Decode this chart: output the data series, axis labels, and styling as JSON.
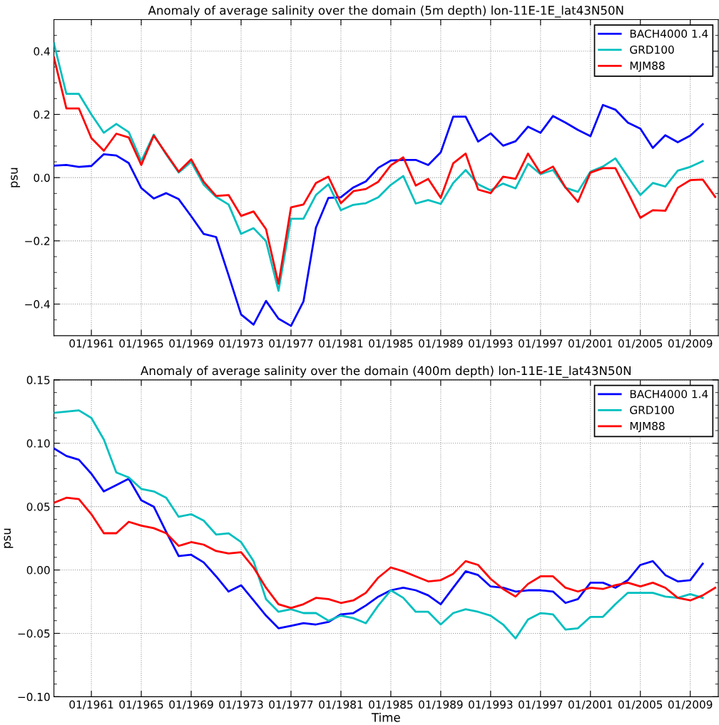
{
  "chart_data": [
    {
      "type": "line",
      "title": "Anomaly of average salinity over the domain (5m depth) lon-11E-1E_lat43N50N",
      "ylabel": "psu",
      "x": [
        "1958-01",
        "1959-01",
        "1960-01",
        "1961-01",
        "1962-01",
        "1963-01",
        "1964-01",
        "1965-01",
        "1966-01",
        "1967-01",
        "1968-01",
        "1969-01",
        "1970-01",
        "1971-01",
        "1972-01",
        "1973-01",
        "1974-01",
        "1975-01",
        "1976-01",
        "1977-01",
        "1978-01",
        "1979-01",
        "1980-01",
        "1981-01",
        "1982-01",
        "1983-01",
        "1984-01",
        "1985-01",
        "1986-01",
        "1987-01",
        "1988-01",
        "1989-01",
        "1990-01",
        "1991-01",
        "1992-01",
        "1993-01",
        "1994-01",
        "1995-01",
        "1996-01",
        "1997-01",
        "1998-01",
        "1999-01",
        "2000-01",
        "2001-01",
        "2002-01",
        "2003-01",
        "2004-01",
        "2005-01",
        "2006-01",
        "2007-01",
        "2008-01",
        "2009-01",
        "2010-01",
        "2011-01"
      ],
      "series": [
        {
          "name": "BACH4000 1.4",
          "color": "#0000ff",
          "values": [
            0.038,
            0.04,
            0.034,
            0.037,
            0.074,
            0.07,
            0.046,
            -0.033,
            -0.066,
            -0.049,
            -0.068,
            -0.122,
            -0.178,
            -0.188,
            -0.309,
            -0.433,
            -0.465,
            -0.39,
            -0.446,
            -0.469,
            -0.392,
            -0.158,
            -0.064,
            -0.062,
            -0.031,
            -0.012,
            0.031,
            0.054,
            0.056,
            0.056,
            0.04,
            0.08,
            0.193,
            0.193,
            0.114,
            0.14,
            0.101,
            0.115,
            0.161,
            0.142,
            0.195,
            0.174,
            0.151,
            0.131,
            0.23,
            0.215,
            0.174,
            0.155,
            0.094,
            0.134,
            0.112,
            0.133,
            0.169,
            null
          ]
        },
        {
          "name": "GRD100",
          "color": "#00bfbf",
          "values": [
            0.425,
            0.265,
            0.265,
            0.2,
            0.142,
            0.17,
            0.144,
            0.052,
            0.136,
            0.073,
            0.016,
            0.05,
            -0.022,
            -0.061,
            -0.085,
            -0.178,
            -0.16,
            -0.201,
            -0.358,
            -0.13,
            -0.13,
            -0.055,
            -0.021,
            -0.103,
            -0.086,
            -0.081,
            -0.062,
            -0.023,
            0.005,
            -0.082,
            -0.071,
            -0.083,
            -0.017,
            0.024,
            -0.021,
            -0.04,
            -0.019,
            -0.034,
            0.044,
            0.011,
            0.024,
            -0.032,
            -0.045,
            0.019,
            0.035,
            0.061,
            0.003,
            -0.055,
            -0.017,
            -0.028,
            0.022,
            0.034,
            0.052,
            null
          ]
        },
        {
          "name": "MJM88",
          "color": "#ff0000",
          "values": [
            0.38,
            0.219,
            0.219,
            0.125,
            0.085,
            0.139,
            0.127,
            0.04,
            0.133,
            0.076,
            0.019,
            0.058,
            -0.013,
            -0.058,
            -0.055,
            -0.121,
            -0.107,
            -0.163,
            -0.336,
            -0.094,
            -0.085,
            -0.017,
            0.003,
            -0.081,
            -0.043,
            -0.036,
            -0.013,
            0.039,
            0.064,
            -0.025,
            -0.004,
            -0.064,
            0.045,
            0.076,
            -0.038,
            -0.049,
            0.003,
            -0.004,
            0.076,
            0.014,
            0.035,
            -0.031,
            -0.077,
            0.016,
            0.03,
            0.03,
            -0.047,
            -0.127,
            -0.103,
            -0.105,
            -0.032,
            -0.008,
            -0.006,
            -0.061
          ]
        }
      ],
      "xlim": [
        "1958-01",
        "2011-04"
      ],
      "xticks": [
        {
          "value": "1961-01",
          "label": "01/1961"
        },
        {
          "value": "1965-01",
          "label": "01/1965"
        },
        {
          "value": "1969-01",
          "label": "01/1969"
        },
        {
          "value": "1973-01",
          "label": "01/1973"
        },
        {
          "value": "1977-01",
          "label": "01/1977"
        },
        {
          "value": "1981-01",
          "label": "01/1981"
        },
        {
          "value": "1985-01",
          "label": "01/1985"
        },
        {
          "value": "1989-01",
          "label": "01/1989"
        },
        {
          "value": "1993-01",
          "label": "01/1993"
        },
        {
          "value": "1997-01",
          "label": "01/1997"
        },
        {
          "value": "2001-01",
          "label": "01/2001"
        },
        {
          "value": "2005-01",
          "label": "01/2005"
        },
        {
          "value": "2009-01",
          "label": "01/2009"
        }
      ],
      "ylim": [
        -0.5,
        0.5
      ],
      "yticks": [
        {
          "value": -0.45,
          "label": null
        },
        {
          "value": -0.4,
          "label": "−0.4"
        },
        {
          "value": -0.35,
          "label": null
        },
        {
          "value": -0.3,
          "label": null
        },
        {
          "value": -0.25,
          "label": null
        },
        {
          "value": -0.2,
          "label": "−0.2"
        },
        {
          "value": -0.15,
          "label": null
        },
        {
          "value": -0.1,
          "label": null
        },
        {
          "value": -0.05,
          "label": null
        },
        {
          "value": 0.0,
          "label": "0.0"
        },
        {
          "value": 0.05,
          "label": null
        },
        {
          "value": 0.1,
          "label": null
        },
        {
          "value": 0.15,
          "label": null
        },
        {
          "value": 0.2,
          "label": "0.2"
        },
        {
          "value": 0.25,
          "label": null
        },
        {
          "value": 0.3,
          "label": null
        },
        {
          "value": 0.35,
          "label": null
        },
        {
          "value": 0.4,
          "label": "0.4"
        },
        {
          "value": 0.45,
          "label": null
        }
      ],
      "grid": true,
      "legend": "top right",
      "line_style": "solid",
      "marker": "none"
    },
    {
      "type": "line",
      "title": "Anomaly of average salinity over the domain (400m depth) lon-11E-1E_lat43N50N",
      "xlabel": "Time",
      "ylabel": "psu",
      "x": [
        "1958-01",
        "1959-01",
        "1960-01",
        "1961-01",
        "1962-01",
        "1963-01",
        "1964-01",
        "1965-01",
        "1966-01",
        "1967-01",
        "1968-01",
        "1969-01",
        "1970-01",
        "1971-01",
        "1972-01",
        "1973-01",
        "1974-01",
        "1975-01",
        "1976-01",
        "1977-01",
        "1978-01",
        "1979-01",
        "1980-01",
        "1981-01",
        "1982-01",
        "1983-01",
        "1984-01",
        "1985-01",
        "1986-01",
        "1987-01",
        "1988-01",
        "1989-01",
        "1990-01",
        "1991-01",
        "1992-01",
        "1993-01",
        "1994-01",
        "1995-01",
        "1996-01",
        "1997-01",
        "1998-01",
        "1999-01",
        "2000-01",
        "2001-01",
        "2002-01",
        "2003-01",
        "2004-01",
        "2005-01",
        "2006-01",
        "2007-01",
        "2008-01",
        "2009-01",
        "2010-01",
        "2011-01"
      ],
      "series": [
        {
          "name": "BACH4000 1.4",
          "color": "#0000ff",
          "values": [
            0.096,
            0.09,
            0.087,
            0.076,
            0.062,
            0.067,
            0.072,
            0.055,
            0.05,
            0.03,
            0.011,
            0.012,
            0.006,
            -0.005,
            -0.017,
            -0.012,
            -0.024,
            -0.036,
            -0.046,
            -0.044,
            -0.042,
            -0.043,
            -0.041,
            -0.035,
            -0.034,
            -0.028,
            -0.021,
            -0.016,
            -0.014,
            -0.016,
            -0.02,
            -0.027,
            -0.014,
            -0.001,
            -0.004,
            -0.013,
            -0.014,
            -0.017,
            -0.016,
            -0.016,
            -0.017,
            -0.026,
            -0.023,
            -0.01,
            -0.01,
            -0.014,
            -0.008,
            0.004,
            0.007,
            -0.004,
            -0.009,
            -0.008,
            0.005,
            null
          ]
        },
        {
          "name": "GRD100",
          "color": "#00bfbf",
          "values": [
            0.124,
            0.125,
            0.126,
            0.12,
            0.103,
            0.077,
            0.073,
            0.064,
            0.062,
            0.057,
            0.042,
            0.044,
            0.039,
            0.028,
            0.029,
            0.022,
            0.007,
            -0.023,
            -0.033,
            -0.031,
            -0.034,
            -0.034,
            -0.04,
            -0.036,
            -0.038,
            -0.042,
            -0.028,
            -0.016,
            -0.022,
            -0.033,
            -0.033,
            -0.043,
            -0.034,
            -0.031,
            -0.033,
            -0.036,
            -0.043,
            -0.054,
            -0.039,
            -0.034,
            -0.035,
            -0.047,
            -0.046,
            -0.037,
            -0.037,
            -0.027,
            -0.018,
            -0.018,
            -0.018,
            -0.021,
            -0.022,
            -0.019,
            -0.022,
            null
          ]
        },
        {
          "name": "MJM88",
          "color": "#ff0000",
          "values": [
            0.053,
            0.057,
            0.056,
            0.044,
            0.029,
            0.029,
            0.038,
            0.035,
            0.033,
            0.029,
            0.019,
            0.022,
            0.02,
            0.015,
            0.013,
            0.014,
            0.002,
            -0.014,
            -0.027,
            -0.03,
            -0.027,
            -0.022,
            -0.023,
            -0.026,
            -0.024,
            -0.018,
            -0.006,
            0.002,
            -0.001,
            -0.005,
            -0.009,
            -0.008,
            -0.003,
            0.007,
            0.004,
            -0.007,
            -0.015,
            -0.021,
            -0.011,
            -0.005,
            -0.005,
            -0.014,
            -0.017,
            -0.014,
            -0.015,
            -0.012,
            -0.01,
            -0.013,
            -0.01,
            -0.014,
            -0.022,
            -0.024,
            -0.02,
            -0.014
          ]
        }
      ],
      "xlim": [
        "1958-01",
        "2011-04"
      ],
      "xticks": [
        {
          "value": "1961-01",
          "label": "01/1961"
        },
        {
          "value": "1965-01",
          "label": "01/1965"
        },
        {
          "value": "1969-01",
          "label": "01/1969"
        },
        {
          "value": "1973-01",
          "label": "01/1973"
        },
        {
          "value": "1977-01",
          "label": "01/1977"
        },
        {
          "value": "1981-01",
          "label": "01/1981"
        },
        {
          "value": "1985-01",
          "label": "01/1985"
        },
        {
          "value": "1989-01",
          "label": "01/1989"
        },
        {
          "value": "1993-01",
          "label": "01/1993"
        },
        {
          "value": "1997-01",
          "label": "01/1997"
        },
        {
          "value": "2001-01",
          "label": "01/2001"
        },
        {
          "value": "2005-01",
          "label": "01/2005"
        },
        {
          "value": "2009-01",
          "label": "01/2009"
        }
      ],
      "ylim": [
        -0.1,
        0.15
      ],
      "yticks": [
        {
          "value": -0.1,
          "label": "−0.10"
        },
        {
          "value": -0.09,
          "label": null
        },
        {
          "value": -0.08,
          "label": null
        },
        {
          "value": -0.07,
          "label": null
        },
        {
          "value": -0.06,
          "label": null
        },
        {
          "value": -0.05,
          "label": "−0.05"
        },
        {
          "value": -0.04,
          "label": null
        },
        {
          "value": -0.03,
          "label": null
        },
        {
          "value": -0.02,
          "label": null
        },
        {
          "value": -0.01,
          "label": null
        },
        {
          "value": 0.0,
          "label": "0.00"
        },
        {
          "value": 0.01,
          "label": null
        },
        {
          "value": 0.02,
          "label": null
        },
        {
          "value": 0.03,
          "label": null
        },
        {
          "value": 0.04,
          "label": null
        },
        {
          "value": 0.05,
          "label": "0.05"
        },
        {
          "value": 0.06,
          "label": null
        },
        {
          "value": 0.07,
          "label": null
        },
        {
          "value": 0.08,
          "label": null
        },
        {
          "value": 0.09,
          "label": null
        },
        {
          "value": 0.1,
          "label": "0.10"
        },
        {
          "value": 0.11,
          "label": null
        },
        {
          "value": 0.12,
          "label": null
        },
        {
          "value": 0.13,
          "label": null
        },
        {
          "value": 0.14,
          "label": null
        },
        {
          "value": 0.15,
          "label": "0.15"
        }
      ],
      "grid": true,
      "legend": "top right",
      "line_style": "solid",
      "marker": "none"
    }
  ]
}
